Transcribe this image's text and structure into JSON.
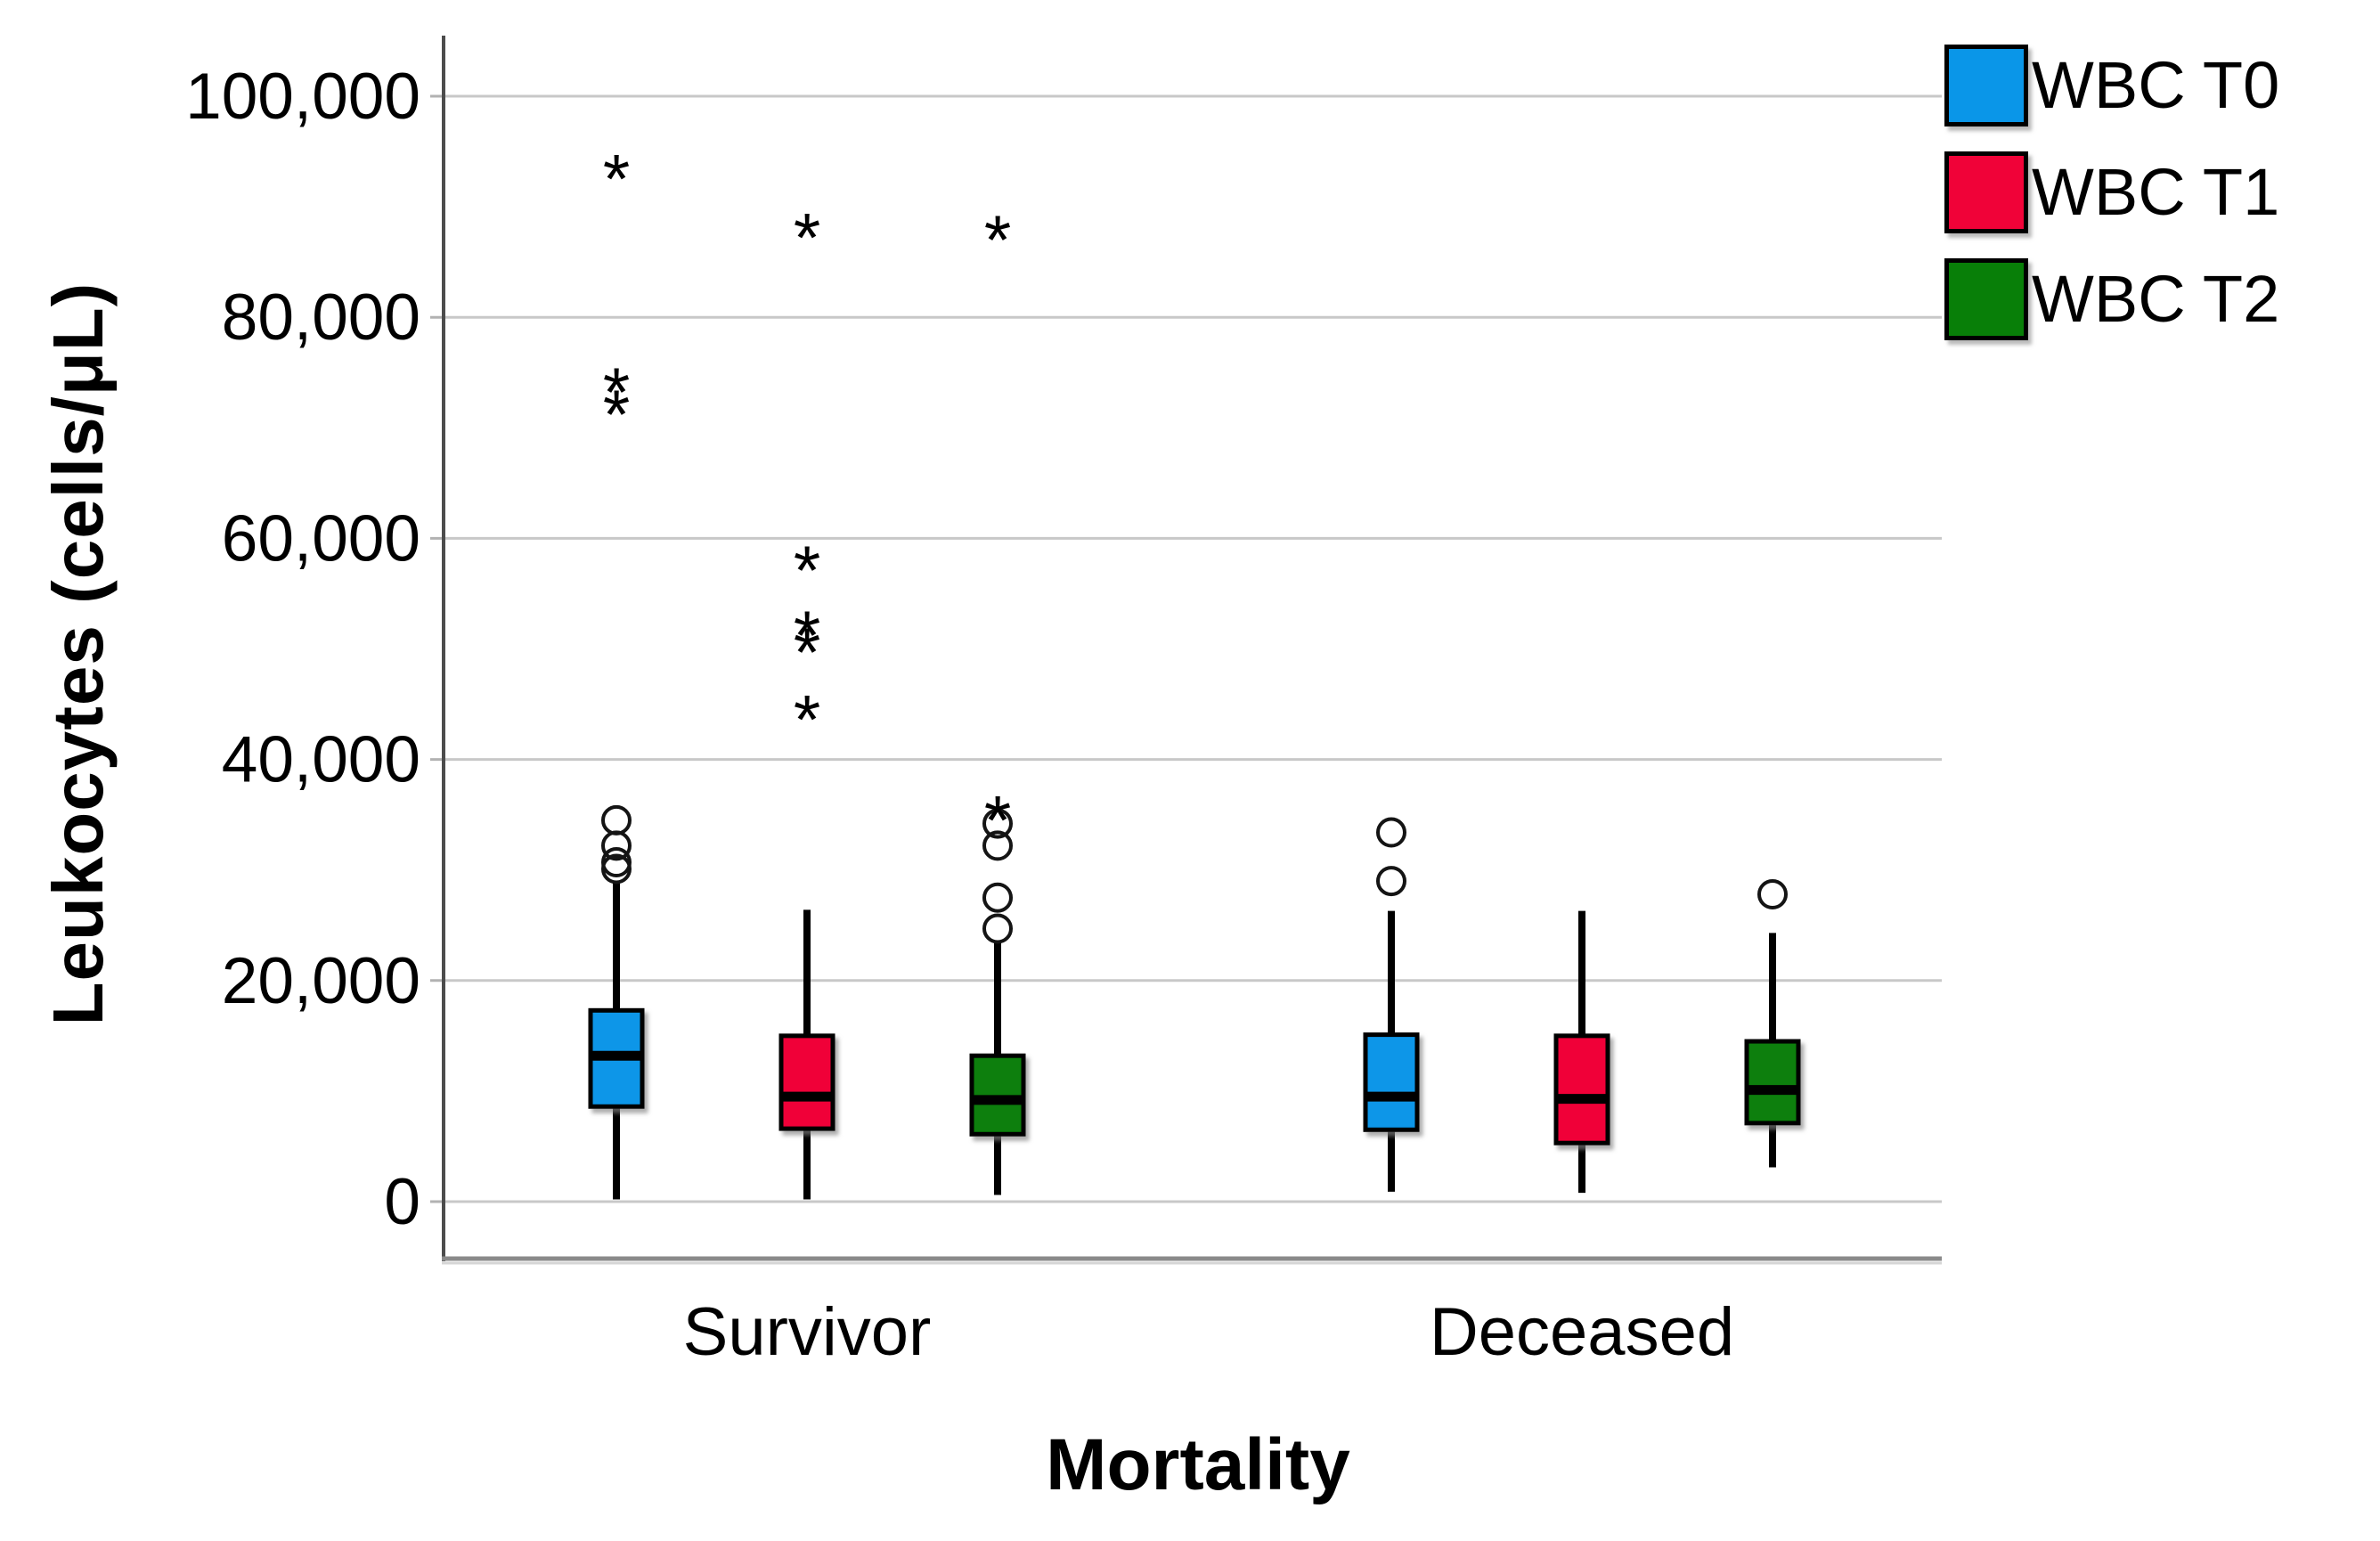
{
  "chart_data": {
    "type": "boxplot",
    "title": "",
    "xlabel": "Mortality",
    "ylabel": "Leukocytes (cells/μL)",
    "ylim": [
      0,
      105000
    ],
    "yticks": [
      0,
      20000,
      40000,
      60000,
      80000,
      100000
    ],
    "ytick_labels": [
      "0",
      "20,000",
      "40,000",
      "60,000",
      "80,000",
      "100,000"
    ],
    "categories": [
      "Survivor",
      "Deceased"
    ],
    "grid": "horizontal",
    "legend_position": "top-right",
    "outlier_marker": "circle",
    "extreme_marker": "*",
    "series": [
      {
        "name": "WBC T0",
        "color": "#0A96E8",
        "boxes": [
          {
            "category": "Survivor",
            "whisker_low": 200,
            "q1": 8600,
            "median": 13200,
            "q3": 17300,
            "whisker_high": 28800,
            "outliers": [
              30100,
              30700,
              32200,
              34500
            ],
            "extremes": [
              72200,
              74200,
              93500
            ]
          },
          {
            "category": "Deceased",
            "whisker_low": 900,
            "q1": 6500,
            "median": 9500,
            "q3": 15100,
            "whisker_high": 26300,
            "outliers": [
              29000,
              33400
            ],
            "extremes": []
          }
        ]
      },
      {
        "name": "WBC T1",
        "color": "#F00238",
        "boxes": [
          {
            "category": "Survivor",
            "whisker_low": 200,
            "q1": 6600,
            "median": 9500,
            "q3": 15000,
            "whisker_high": 26400,
            "outliers": [],
            "extremes": [
              44600,
              50700,
              52200,
              58100,
              88200
            ]
          },
          {
            "category": "Deceased",
            "whisker_low": 800,
            "q1": 5300,
            "median": 9300,
            "q3": 15000,
            "whisker_high": 26300,
            "outliers": [],
            "extremes": []
          }
        ]
      },
      {
        "name": "WBC T2",
        "color": "#087F08",
        "boxes": [
          {
            "category": "Survivor",
            "whisker_low": 600,
            "q1": 6100,
            "median": 9200,
            "q3": 13200,
            "whisker_high": 23400,
            "outliers": [
              24700,
              27500,
              32200,
              34200
            ],
            "extremes": [
              35500,
              88000
            ]
          },
          {
            "category": "Deceased",
            "whisker_low": 3100,
            "q1": 7100,
            "median": 10100,
            "q3": 14500,
            "whisker_high": 24300,
            "outliers": [
              27800
            ],
            "extremes": []
          }
        ]
      }
    ]
  }
}
